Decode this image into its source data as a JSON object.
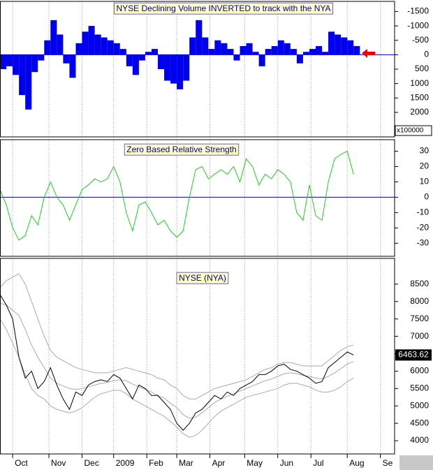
{
  "chart_data": [
    {
      "type": "bar",
      "title": "NYSE Declining Volume INVERTED to track with the NYA",
      "y_scale_label": "x100000",
      "x": [
        0,
        4,
        8,
        12,
        16,
        20,
        24,
        28,
        32,
        36,
        40,
        44,
        48,
        52,
        56,
        60,
        64,
        68,
        72,
        76,
        80,
        84,
        88,
        92,
        96,
        100,
        104,
        108,
        112,
        116,
        120,
        124,
        128,
        132,
        136,
        140,
        144,
        148,
        152,
        156,
        160,
        164,
        168,
        172,
        176,
        180,
        184,
        188,
        192,
        196,
        200,
        204,
        208,
        212,
        216,
        220,
        224
      ],
      "xlim": [
        0,
        250
      ],
      "ylim": [
        -1850,
        2850
      ],
      "inverted_y": true,
      "zero_line": true,
      "zero_line_color": "#0000cc",
      "yticks": [
        -1500,
        -1000,
        -500,
        0,
        500,
        1000,
        1500,
        2000
      ],
      "series": [
        {
          "color": "#0000ee",
          "values": [
            500,
            400,
            700,
            1400,
            1900,
            600,
            200,
            -500,
            -1200,
            -700,
            300,
            800,
            -400,
            -800,
            -1000,
            -700,
            -600,
            -500,
            -400,
            -200,
            400,
            700,
            200,
            -100,
            -200,
            500,
            900,
            1000,
            1200,
            900,
            -600,
            -1200,
            -600,
            -200,
            -500,
            -400,
            -200,
            200,
            -300,
            -400,
            -100,
            400,
            -200,
            -300,
            -500,
            -400,
            -200,
            300,
            -100,
            -200,
            -300,
            -100,
            -800,
            -700,
            -600,
            -500,
            -300
          ]
        }
      ]
    },
    {
      "type": "line",
      "title": "Zero Based Relative Strength",
      "x": [
        0,
        4,
        8,
        12,
        16,
        20,
        24,
        28,
        32,
        36,
        40,
        44,
        48,
        52,
        56,
        60,
        64,
        68,
        72,
        76,
        80,
        84,
        88,
        92,
        96,
        100,
        104,
        108,
        112,
        116,
        120,
        124,
        128,
        132,
        136,
        140,
        144,
        148,
        152,
        156,
        160,
        164,
        168,
        172,
        176,
        180,
        184,
        188,
        192,
        196,
        200,
        204,
        208,
        212,
        216,
        220,
        224
      ],
      "xlim": [
        0,
        250
      ],
      "ylim": [
        -38.5,
        37.5
      ],
      "zero_line": true,
      "zero_line_color": "#0000cc",
      "yticks": [
        30,
        20,
        10,
        0,
        -10,
        -20,
        -30
      ],
      "series": [
        {
          "color": "#22cc22",
          "values": [
            5,
            -5,
            -20,
            -28,
            -25,
            -12,
            -18,
            0,
            10,
            0,
            -5,
            -15,
            -5,
            5,
            8,
            12,
            10,
            12,
            20,
            10,
            -10,
            -22,
            -5,
            -3,
            -10,
            -18,
            -15,
            -22,
            -26,
            -22,
            0,
            18,
            20,
            12,
            15,
            18,
            15,
            20,
            10,
            25,
            20,
            8,
            15,
            12,
            18,
            15,
            10,
            -10,
            -15,
            8,
            -12,
            -15,
            10,
            25,
            28,
            30,
            15
          ]
        }
      ]
    },
    {
      "type": "line",
      "title": "NYSE (NYA)",
      "last_value_label": "6463.62",
      "x": [
        0,
        4,
        8,
        12,
        16,
        20,
        24,
        28,
        32,
        36,
        40,
        44,
        48,
        52,
        56,
        60,
        64,
        68,
        72,
        76,
        80,
        84,
        88,
        92,
        96,
        100,
        104,
        108,
        112,
        116,
        120,
        124,
        128,
        132,
        136,
        140,
        144,
        148,
        152,
        156,
        160,
        164,
        168,
        172,
        176,
        180,
        184,
        188,
        192,
        196,
        200,
        204,
        208,
        212,
        216,
        220,
        224
      ],
      "xlim": [
        0,
        250
      ],
      "ylim": [
        3620,
        9240
      ],
      "yticks": [
        8500,
        8000,
        7500,
        7000,
        6500,
        6000,
        5500,
        5000,
        4500,
        4000
      ],
      "xticks": [
        {
          "value": 8,
          "label": "Oct"
        },
        {
          "value": 31,
          "label": "Nov"
        },
        {
          "value": 52,
          "label": "Dec"
        },
        {
          "value": 72,
          "label": "2009"
        },
        {
          "value": 93,
          "label": "Feb"
        },
        {
          "value": 112,
          "label": "Mar"
        },
        {
          "value": 133,
          "label": "Apr"
        },
        {
          "value": 155,
          "label": "May"
        },
        {
          "value": 176,
          "label": "Jun"
        },
        {
          "value": 197,
          "label": "Jul"
        },
        {
          "value": 220,
          "label": "Aug"
        },
        {
          "value": 241,
          "label": "Se"
        }
      ],
      "series": [
        {
          "color": "#aaaaaa",
          "values": [
            8400,
            8600,
            8700,
            8800,
            8500,
            8000,
            7500,
            7000,
            6600,
            6400,
            6300,
            6200,
            6100,
            6050,
            6000,
            5950,
            5950,
            5950,
            6000,
            6050,
            6100,
            6050,
            6000,
            5950,
            5900,
            5800,
            5750,
            5600,
            5500,
            5300,
            5200,
            5200,
            5300,
            5400,
            5500,
            5550,
            5600,
            5650,
            5700,
            5750,
            5850,
            5950,
            6050,
            6100,
            6200,
            6250,
            6250,
            6200,
            6150,
            6150,
            6150,
            6150,
            6300,
            6450,
            6600,
            6700,
            6750
          ]
        },
        {
          "color": "#aaaaaa",
          "values": [
            7950,
            7900,
            7750,
            7600,
            7200,
            6750,
            6400,
            6100,
            5800,
            5650,
            5575,
            5500,
            5475,
            5500,
            5550,
            5600,
            5650,
            5675,
            5725,
            5750,
            5725,
            5625,
            5550,
            5475,
            5400,
            5300,
            5225,
            5075,
            4950,
            4750,
            4650,
            4675,
            4800,
            4950,
            5100,
            5200,
            5275,
            5350,
            5425,
            5500,
            5575,
            5650,
            5725,
            5775,
            5850,
            5925,
            5950,
            5925,
            5875,
            5850,
            5800,
            5775,
            5850,
            5950,
            6075,
            6200,
            6275
          ]
        },
        {
          "color": "#aaaaaa",
          "values": [
            7500,
            7200,
            6800,
            6400,
            5900,
            5500,
            5300,
            5200,
            5000,
            4900,
            4850,
            4800,
            4850,
            4950,
            5100,
            5250,
            5350,
            5400,
            5450,
            5450,
            5350,
            5200,
            5100,
            5000,
            4900,
            4800,
            4700,
            4550,
            4400,
            4200,
            4100,
            4150,
            4300,
            4500,
            4700,
            4850,
            4950,
            5050,
            5150,
            5250,
            5300,
            5350,
            5400,
            5450,
            5500,
            5600,
            5650,
            5650,
            5600,
            5550,
            5450,
            5400,
            5400,
            5450,
            5550,
            5700,
            5800
          ]
        },
        {
          "color": "#000000",
          "values": [
            8200,
            7900,
            7500,
            6400,
            5800,
            6000,
            5500,
            5700,
            6100,
            5600,
            5200,
            4900,
            5400,
            5300,
            5600,
            5700,
            5750,
            5700,
            5900,
            5800,
            5500,
            5200,
            5600,
            5500,
            5300,
            5300,
            5100,
            4900,
            4500,
            4300,
            4500,
            4800,
            4900,
            5100,
            5300,
            5200,
            5400,
            5300,
            5500,
            5600,
            5700,
            5900,
            5900,
            6000,
            6150,
            6200,
            6050,
            6000,
            5900,
            5800,
            5650,
            5700,
            6100,
            6250,
            6400,
            6550,
            6463.62
          ]
        }
      ]
    }
  ]
}
